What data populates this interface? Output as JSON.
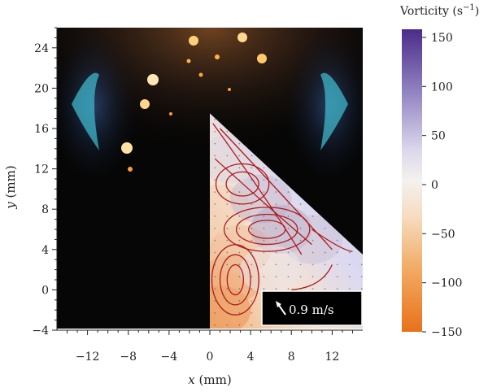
{
  "chart_data": {
    "type": "heatmap",
    "title": "",
    "xlabel": "x (mm)",
    "ylabel": "y (mm)",
    "xlim": [
      -15,
      15
    ],
    "ylim": [
      -4,
      26
    ],
    "x_ticks": [
      -12,
      -8,
      -4,
      0,
      4,
      8,
      12
    ],
    "x_tick_labels": [
      "−12",
      "−8",
      "−4",
      "0",
      "4",
      "8",
      "12"
    ],
    "y_ticks": [
      -4,
      0,
      4,
      8,
      12,
      16,
      20,
      24
    ],
    "y_tick_labels": [
      "−4",
      "0",
      "4",
      "8",
      "12",
      "16",
      "20",
      "24"
    ],
    "background": "flame photograph",
    "vorticity_region_vertices": [
      [
        0,
        17.5
      ],
      [
        15,
        3.5
      ],
      [
        15,
        -4
      ],
      [
        0,
        -4
      ]
    ],
    "vorticity_samples": [
      {
        "x": 1,
        "y": -2,
        "w": -110
      },
      {
        "x": 2,
        "y": 1,
        "w": -90
      },
      {
        "x": 3,
        "y": 4,
        "w": -60
      },
      {
        "x": 1,
        "y": 8,
        "w": -40
      },
      {
        "x": 5,
        "y": 9,
        "w": 40
      },
      {
        "x": 7,
        "y": 6,
        "w": 55
      },
      {
        "x": 10,
        "y": 5,
        "w": 35
      },
      {
        "x": 6,
        "y": 2,
        "w": 10
      },
      {
        "x": 2,
        "y": 13,
        "w": 20
      }
    ],
    "reference_vector": {
      "label": "0.9 m/s",
      "magnitude": 0.9,
      "unit": "m/s"
    },
    "colorbar": {
      "title_main": "Vorticity (s",
      "title_sup": "−1",
      "title_close": ")",
      "range": [
        -150,
        150
      ],
      "ticks": [
        150,
        100,
        50,
        0,
        -50,
        -100,
        -150
      ],
      "tick_labels": [
        "150",
        "100",
        "50",
        "0",
        "−50",
        "−100",
        "−150"
      ],
      "colors": {
        "max": "#4a2c8a",
        "mid": "#f4f1ee",
        "min": "#e8711a"
      }
    }
  }
}
